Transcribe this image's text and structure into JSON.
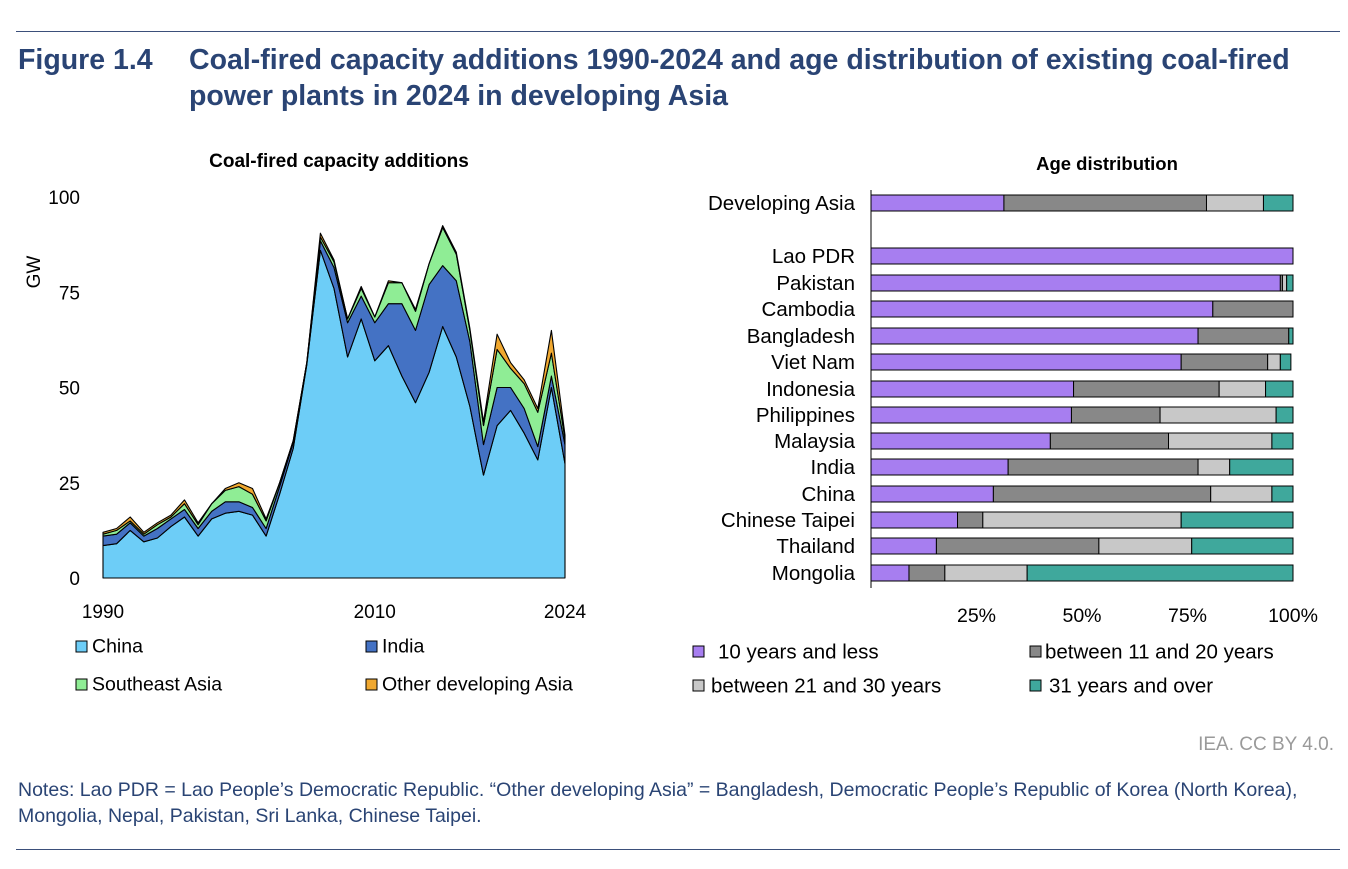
{
  "figure": {
    "number": "Figure 1.4",
    "title": "Coal-fired capacity additions 1990-2024 and age distribution of existing coal-fired power plants in 2024 in developing Asia",
    "credit": "IEA. CC BY 4.0.",
    "notes": "Notes: Lao PDR = Lao People’s Democratic Republic. “Other developing Asia” = Bangladesh, Democratic People’s Republic of Korea (North Korea), Mongolia, Nepal, Pakistan, Sri Lanka, Chinese Taipei."
  },
  "chart_data": [
    {
      "type": "area",
      "stacked": true,
      "title": "Coal-fired capacity additions",
      "ylabel": "GW",
      "ylim": [
        0,
        100
      ],
      "yticks": [
        0,
        25,
        50,
        75,
        100
      ],
      "xticks": [
        1990,
        2010,
        2024
      ],
      "grid": false,
      "legend_position": "bottom",
      "x": [
        1990,
        1991,
        1992,
        1993,
        1994,
        1995,
        1996,
        1997,
        1998,
        1999,
        2000,
        2001,
        2002,
        2003,
        2004,
        2005,
        2006,
        2007,
        2008,
        2009,
        2010,
        2011,
        2012,
        2013,
        2014,
        2015,
        2016,
        2017,
        2018,
        2019,
        2020,
        2021,
        2022,
        2023,
        2024
      ],
      "series": [
        {
          "name": "China",
          "color": "#6dcdf7",
          "values": [
            8.5,
            9,
            12.5,
            9.5,
            10.5,
            13.5,
            16,
            11,
            15.5,
            17,
            17.5,
            16.5,
            11,
            22,
            34,
            56,
            86,
            76,
            58,
            68,
            57,
            61,
            53,
            46,
            54,
            66,
            58,
            45,
            27,
            40,
            44,
            38,
            31,
            50,
            30
          ]
        },
        {
          "name": "India",
          "color": "#4472c4",
          "values": [
            2.5,
            2.5,
            2,
            1.5,
            2.5,
            2,
            2,
            2,
            2,
            3,
            2.5,
            2,
            2,
            2,
            1.5,
            0.5,
            2.5,
            5.5,
            9,
            6,
            10,
            11,
            19,
            19,
            23,
            16,
            20,
            17,
            8,
            10,
            6,
            6.5,
            3.5,
            3,
            5
          ]
        },
        {
          "name": "Southeast Asia",
          "color": "#8fed95",
          "values": [
            0.5,
            1,
            0.5,
            0.5,
            1,
            0.5,
            1.5,
            1,
            2,
            3,
            4,
            3.5,
            2,
            1,
            0.5,
            0,
            1,
            1.5,
            1,
            2,
            1.5,
            5.5,
            5.5,
            5,
            5.5,
            10,
            7,
            3,
            5,
            10,
            5,
            6.5,
            9,
            6,
            1.5
          ]
        },
        {
          "name": "Other developing Asia",
          "color": "#f0a830",
          "values": [
            0.5,
            0.5,
            1,
            0.5,
            0.5,
            0.5,
            1,
            0.5,
            0,
            0.5,
            1,
            1.5,
            0.5,
            0,
            0,
            0,
            1,
            0.5,
            0,
            0.5,
            0,
            0.5,
            0,
            0.5,
            0,
            0.5,
            0.5,
            0.5,
            1,
            4,
            1.5,
            1,
            1,
            6,
            1
          ]
        }
      ]
    },
    {
      "type": "bar",
      "orientation": "horizontal",
      "stacked_percent": true,
      "title": "Age distribution",
      "xticks": [
        "25%",
        "50%",
        "75%",
        "100%"
      ],
      "xlim": [
        0,
        100
      ],
      "legend_position": "bottom",
      "categories": [
        "Developing Asia",
        "Lao PDR",
        "Pakistan",
        "Cambodia",
        "Bangladesh",
        "Viet Nam",
        "Indonesia",
        "Philippines",
        "Malaysia",
        "India",
        "China",
        "Chinese Taipei",
        "Thailand",
        "Mongolia"
      ],
      "series": [
        {
          "name": "10 years and less",
          "color": "#a77ef0",
          "values": [
            31.5,
            100,
            97,
            81,
            77.5,
            73.5,
            48,
            47.5,
            42.5,
            32.5,
            29,
            20.5,
            15.5,
            9
          ]
        },
        {
          "name": "between 11 and 20 years",
          "color": "#888888",
          "values": [
            48,
            0,
            0.5,
            19,
            21.5,
            20.5,
            34.5,
            21,
            28,
            45,
            51.5,
            6,
            38.5,
            8.5
          ]
        },
        {
          "name": "between 21 and 30 years",
          "color": "#c8c8c8",
          "values": [
            13.5,
            0,
            1,
            0,
            0,
            3,
            11,
            27.5,
            24.5,
            7.5,
            14.5,
            47,
            22,
            19.5
          ]
        },
        {
          "name": "31 years and over",
          "color": "#3fa89c",
          "values": [
            7,
            0,
            1.5,
            0,
            1,
            2.5,
            6.5,
            4,
            5,
            15,
            5,
            26.5,
            24,
            63
          ]
        }
      ]
    }
  ]
}
